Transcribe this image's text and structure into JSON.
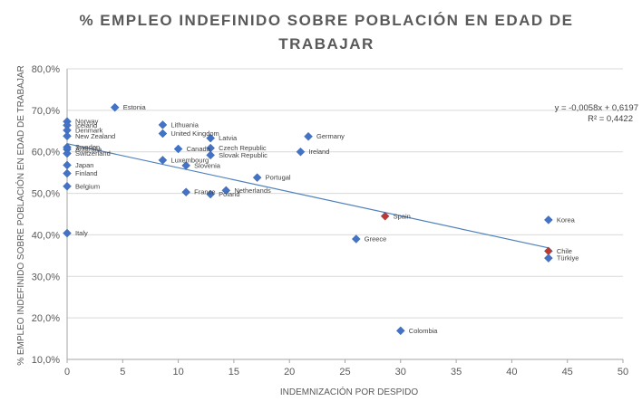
{
  "chart_data": {
    "type": "scatter",
    "title_line1": "% EMPLEO INDEFINIDO SOBRE POBLACIÓN EN EDAD DE",
    "title_line2": "TRABAJAR",
    "xlabel": "INDEMNIZACIÓN POR DESPIDO",
    "ylabel": "% EMPLEO INDEFINIDO SOBRE POBLACIÓN EN EDAD DE TRABAJAR",
    "xlim": [
      0,
      50
    ],
    "ylim": [
      0.1,
      0.8
    ],
    "x_ticks": [
      "0",
      "5",
      "10",
      "15",
      "20",
      "25",
      "30",
      "35",
      "40",
      "45",
      "50"
    ],
    "y_ticks": [
      "10,0%",
      "20,0%",
      "30,0%",
      "40,0%",
      "50,0%",
      "60,0%",
      "70,0%",
      "80,0%"
    ],
    "grid": "horizontal",
    "marker_color": "#4472C4",
    "highlight_color": "#C0392B",
    "trendline": {
      "type": "linear",
      "slope": -0.0058,
      "intercept": 0.6197,
      "equation": "y = -0,0058x + 0,6197",
      "r_squared": "R² = 0,4422",
      "color": "#4F81BD"
    },
    "points": [
      {
        "label": "Norway",
        "x": 0,
        "y": 0.673
      },
      {
        "label": "Iceland",
        "x": 0,
        "y": 0.664
      },
      {
        "label": "Denmark",
        "x": 0,
        "y": 0.652
      },
      {
        "label": "New Zealand",
        "x": 0,
        "y": 0.638
      },
      {
        "label": "Sweden",
        "x": 0,
        "y": 0.611
      },
      {
        "label": "Australia",
        "x": 0,
        "y": 0.606
      },
      {
        "label": "Switzerland",
        "x": 0,
        "y": 0.596
      },
      {
        "label": "Japan",
        "x": 0,
        "y": 0.568
      },
      {
        "label": "Finland",
        "x": 0,
        "y": 0.548
      },
      {
        "label": "Belgium",
        "x": 0,
        "y": 0.517
      },
      {
        "label": "Italy",
        "x": 0,
        "y": 0.404
      },
      {
        "label": "Estonia",
        "x": 4.3,
        "y": 0.707
      },
      {
        "label": "Lithuania",
        "x": 8.6,
        "y": 0.665
      },
      {
        "label": "United Kingdom",
        "x": 8.6,
        "y": 0.644
      },
      {
        "label": "Latvia",
        "x": 12.9,
        "y": 0.633
      },
      {
        "label": "Canada",
        "x": 10.0,
        "y": 0.607
      },
      {
        "label": "Czech Republic",
        "x": 12.9,
        "y": 0.609
      },
      {
        "label": "Slovak Republic",
        "x": 12.9,
        "y": 0.592
      },
      {
        "label": "Luxembourg",
        "x": 8.6,
        "y": 0.58
      },
      {
        "label": "Slovenia",
        "x": 10.7,
        "y": 0.567
      },
      {
        "label": "Germany",
        "x": 21.7,
        "y": 0.637
      },
      {
        "label": "Ireland",
        "x": 21.0,
        "y": 0.6
      },
      {
        "label": "Portugal",
        "x": 17.1,
        "y": 0.538
      },
      {
        "label": "France",
        "x": 10.7,
        "y": 0.503
      },
      {
        "label": "Poland",
        "x": 12.9,
        "y": 0.498
      },
      {
        "label": "Netherlands",
        "x": 14.3,
        "y": 0.507
      },
      {
        "label": "Spain",
        "x": 28.6,
        "y": 0.445,
        "highlight": true
      },
      {
        "label": "Greece",
        "x": 26.0,
        "y": 0.39
      },
      {
        "label": "Korea",
        "x": 43.3,
        "y": 0.436
      },
      {
        "label": "Chile",
        "x": 43.3,
        "y": 0.361,
        "highlight": true
      },
      {
        "label": "Türkiye",
        "x": 43.3,
        "y": 0.344
      },
      {
        "label": "Colombia",
        "x": 30.0,
        "y": 0.169
      }
    ]
  }
}
